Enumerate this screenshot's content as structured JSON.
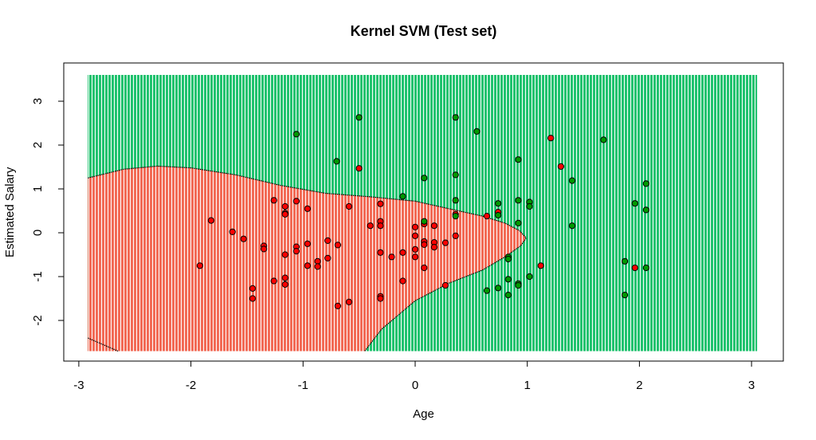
{
  "chart_data": {
    "type": "scatter",
    "title": "Kernel SVM (Test set)",
    "xlabel": "Age",
    "ylabel": "Estimated Salary",
    "xlim": [
      -3,
      3
    ],
    "ylim": [
      -2.7,
      3.6
    ],
    "x_ticks": [
      -3,
      -2,
      -1,
      0,
      1,
      2,
      3
    ],
    "y_ticks": [
      -2,
      -1,
      0,
      1,
      2,
      3
    ],
    "grid": false,
    "colors": {
      "region_class_0": "#f26a55",
      "region_class_1": "#1fc26e",
      "point_class_0": "#ff0000",
      "point_class_1": "#009900",
      "boundary": "#000000"
    },
    "decision_boundary": [
      [
        -2.92,
        1.25
      ],
      [
        -2.6,
        1.45
      ],
      [
        -2.3,
        1.52
      ],
      [
        -2.0,
        1.48
      ],
      [
        -1.6,
        1.32
      ],
      [
        -1.2,
        1.08
      ],
      [
        -0.8,
        0.9
      ],
      [
        -0.4,
        0.82
      ],
      [
        0.0,
        0.72
      ],
      [
        0.3,
        0.55
      ],
      [
        0.6,
        0.38
      ],
      [
        0.8,
        0.22
      ],
      [
        0.93,
        0.05
      ],
      [
        0.99,
        -0.12
      ],
      [
        0.94,
        -0.3
      ],
      [
        0.8,
        -0.55
      ],
      [
        0.6,
        -0.85
      ],
      [
        0.3,
        -1.15
      ],
      [
        0.0,
        -1.55
      ],
      [
        -0.3,
        -2.2
      ],
      [
        -0.45,
        -2.7
      ]
    ],
    "decision_boundary_lower_left": [
      [
        -2.92,
        -2.4
      ],
      [
        -2.65,
        -2.7
      ]
    ],
    "series": [
      {
        "class": 0,
        "points": [
          [
            -1.06,
            0.72
          ],
          [
            -1.26,
            0.74
          ],
          [
            -1.16,
            0.6
          ],
          [
            -0.96,
            0.55
          ],
          [
            -1.16,
            0.45
          ],
          [
            -1.16,
            0.42
          ],
          [
            -1.82,
            0.28
          ],
          [
            -1.63,
            0.02
          ],
          [
            -1.53,
            -0.14
          ],
          [
            -1.35,
            -0.3
          ],
          [
            -1.35,
            -0.37
          ],
          [
            -1.16,
            -0.5
          ],
          [
            -1.06,
            -0.32
          ],
          [
            -1.06,
            -0.42
          ],
          [
            -0.96,
            -0.25
          ],
          [
            -0.78,
            -0.18
          ],
          [
            -0.69,
            -0.28
          ],
          [
            -0.78,
            -0.58
          ],
          [
            -0.87,
            -0.65
          ],
          [
            -0.87,
            -0.77
          ],
          [
            -0.96,
            -0.75
          ],
          [
            -1.92,
            -0.75
          ],
          [
            -1.16,
            -1.03
          ],
          [
            -1.26,
            -1.1
          ],
          [
            -1.16,
            -1.18
          ],
          [
            -1.45,
            -1.27
          ],
          [
            -1.45,
            -1.5
          ],
          [
            -0.69,
            -1.67
          ],
          [
            -0.59,
            -1.58
          ],
          [
            -0.59,
            0.6
          ],
          [
            -0.5,
            1.47
          ],
          [
            -0.31,
            0.66
          ],
          [
            -0.31,
            0.26
          ],
          [
            -0.31,
            0.16
          ],
          [
            -0.4,
            0.16
          ],
          [
            -0.31,
            -0.45
          ],
          [
            -0.21,
            -0.55
          ],
          [
            -0.11,
            -0.45
          ],
          [
            -0.11,
            -1.1
          ],
          [
            -0.31,
            -1.45
          ],
          [
            -0.31,
            -1.5
          ],
          [
            0.0,
            0.13
          ],
          [
            0.0,
            -0.07
          ],
          [
            0.0,
            -0.38
          ],
          [
            0.0,
            -0.55
          ],
          [
            0.08,
            0.2
          ],
          [
            0.08,
            -0.2
          ],
          [
            0.08,
            -0.27
          ],
          [
            0.08,
            -0.8
          ],
          [
            0.17,
            0.16
          ],
          [
            0.17,
            -0.22
          ],
          [
            0.17,
            -0.33
          ],
          [
            0.27,
            -0.23
          ],
          [
            0.27,
            -1.2
          ],
          [
            0.36,
            0.42
          ],
          [
            0.36,
            -0.07
          ],
          [
            0.64,
            0.38
          ],
          [
            0.74,
            0.47
          ],
          [
            1.21,
            2.16
          ],
          [
            1.3,
            1.51
          ],
          [
            1.12,
            -0.75
          ],
          [
            1.96,
            -0.8
          ]
        ]
      },
      {
        "class": 1,
        "points": [
          [
            -0.5,
            2.63
          ],
          [
            -1.06,
            2.25
          ],
          [
            -0.7,
            1.63
          ],
          [
            0.36,
            2.63
          ],
          [
            0.55,
            2.31
          ],
          [
            0.92,
            1.67
          ],
          [
            1.68,
            2.12
          ],
          [
            0.36,
            1.32
          ],
          [
            0.08,
            1.25
          ],
          [
            -0.11,
            0.83
          ],
          [
            0.36,
            0.74
          ],
          [
            0.74,
            0.67
          ],
          [
            0.92,
            0.74
          ],
          [
            1.02,
            0.7
          ],
          [
            1.02,
            0.6
          ],
          [
            1.4,
            1.19
          ],
          [
            2.06,
            1.12
          ],
          [
            1.96,
            0.67
          ],
          [
            2.06,
            0.52
          ],
          [
            0.74,
            0.4
          ],
          [
            0.92,
            0.22
          ],
          [
            1.4,
            0.16
          ],
          [
            0.08,
            0.26
          ],
          [
            0.36,
            0.38
          ],
          [
            0.83,
            -0.55
          ],
          [
            0.83,
            -0.6
          ],
          [
            0.83,
            -1.06
          ],
          [
            0.92,
            -1.16
          ],
          [
            0.92,
            -1.2
          ],
          [
            1.02,
            -1.0
          ],
          [
            0.74,
            -1.26
          ],
          [
            0.64,
            -1.32
          ],
          [
            0.83,
            -1.42
          ],
          [
            1.87,
            -0.65
          ],
          [
            2.06,
            -0.8
          ],
          [
            1.87,
            -1.42
          ]
        ]
      }
    ]
  }
}
